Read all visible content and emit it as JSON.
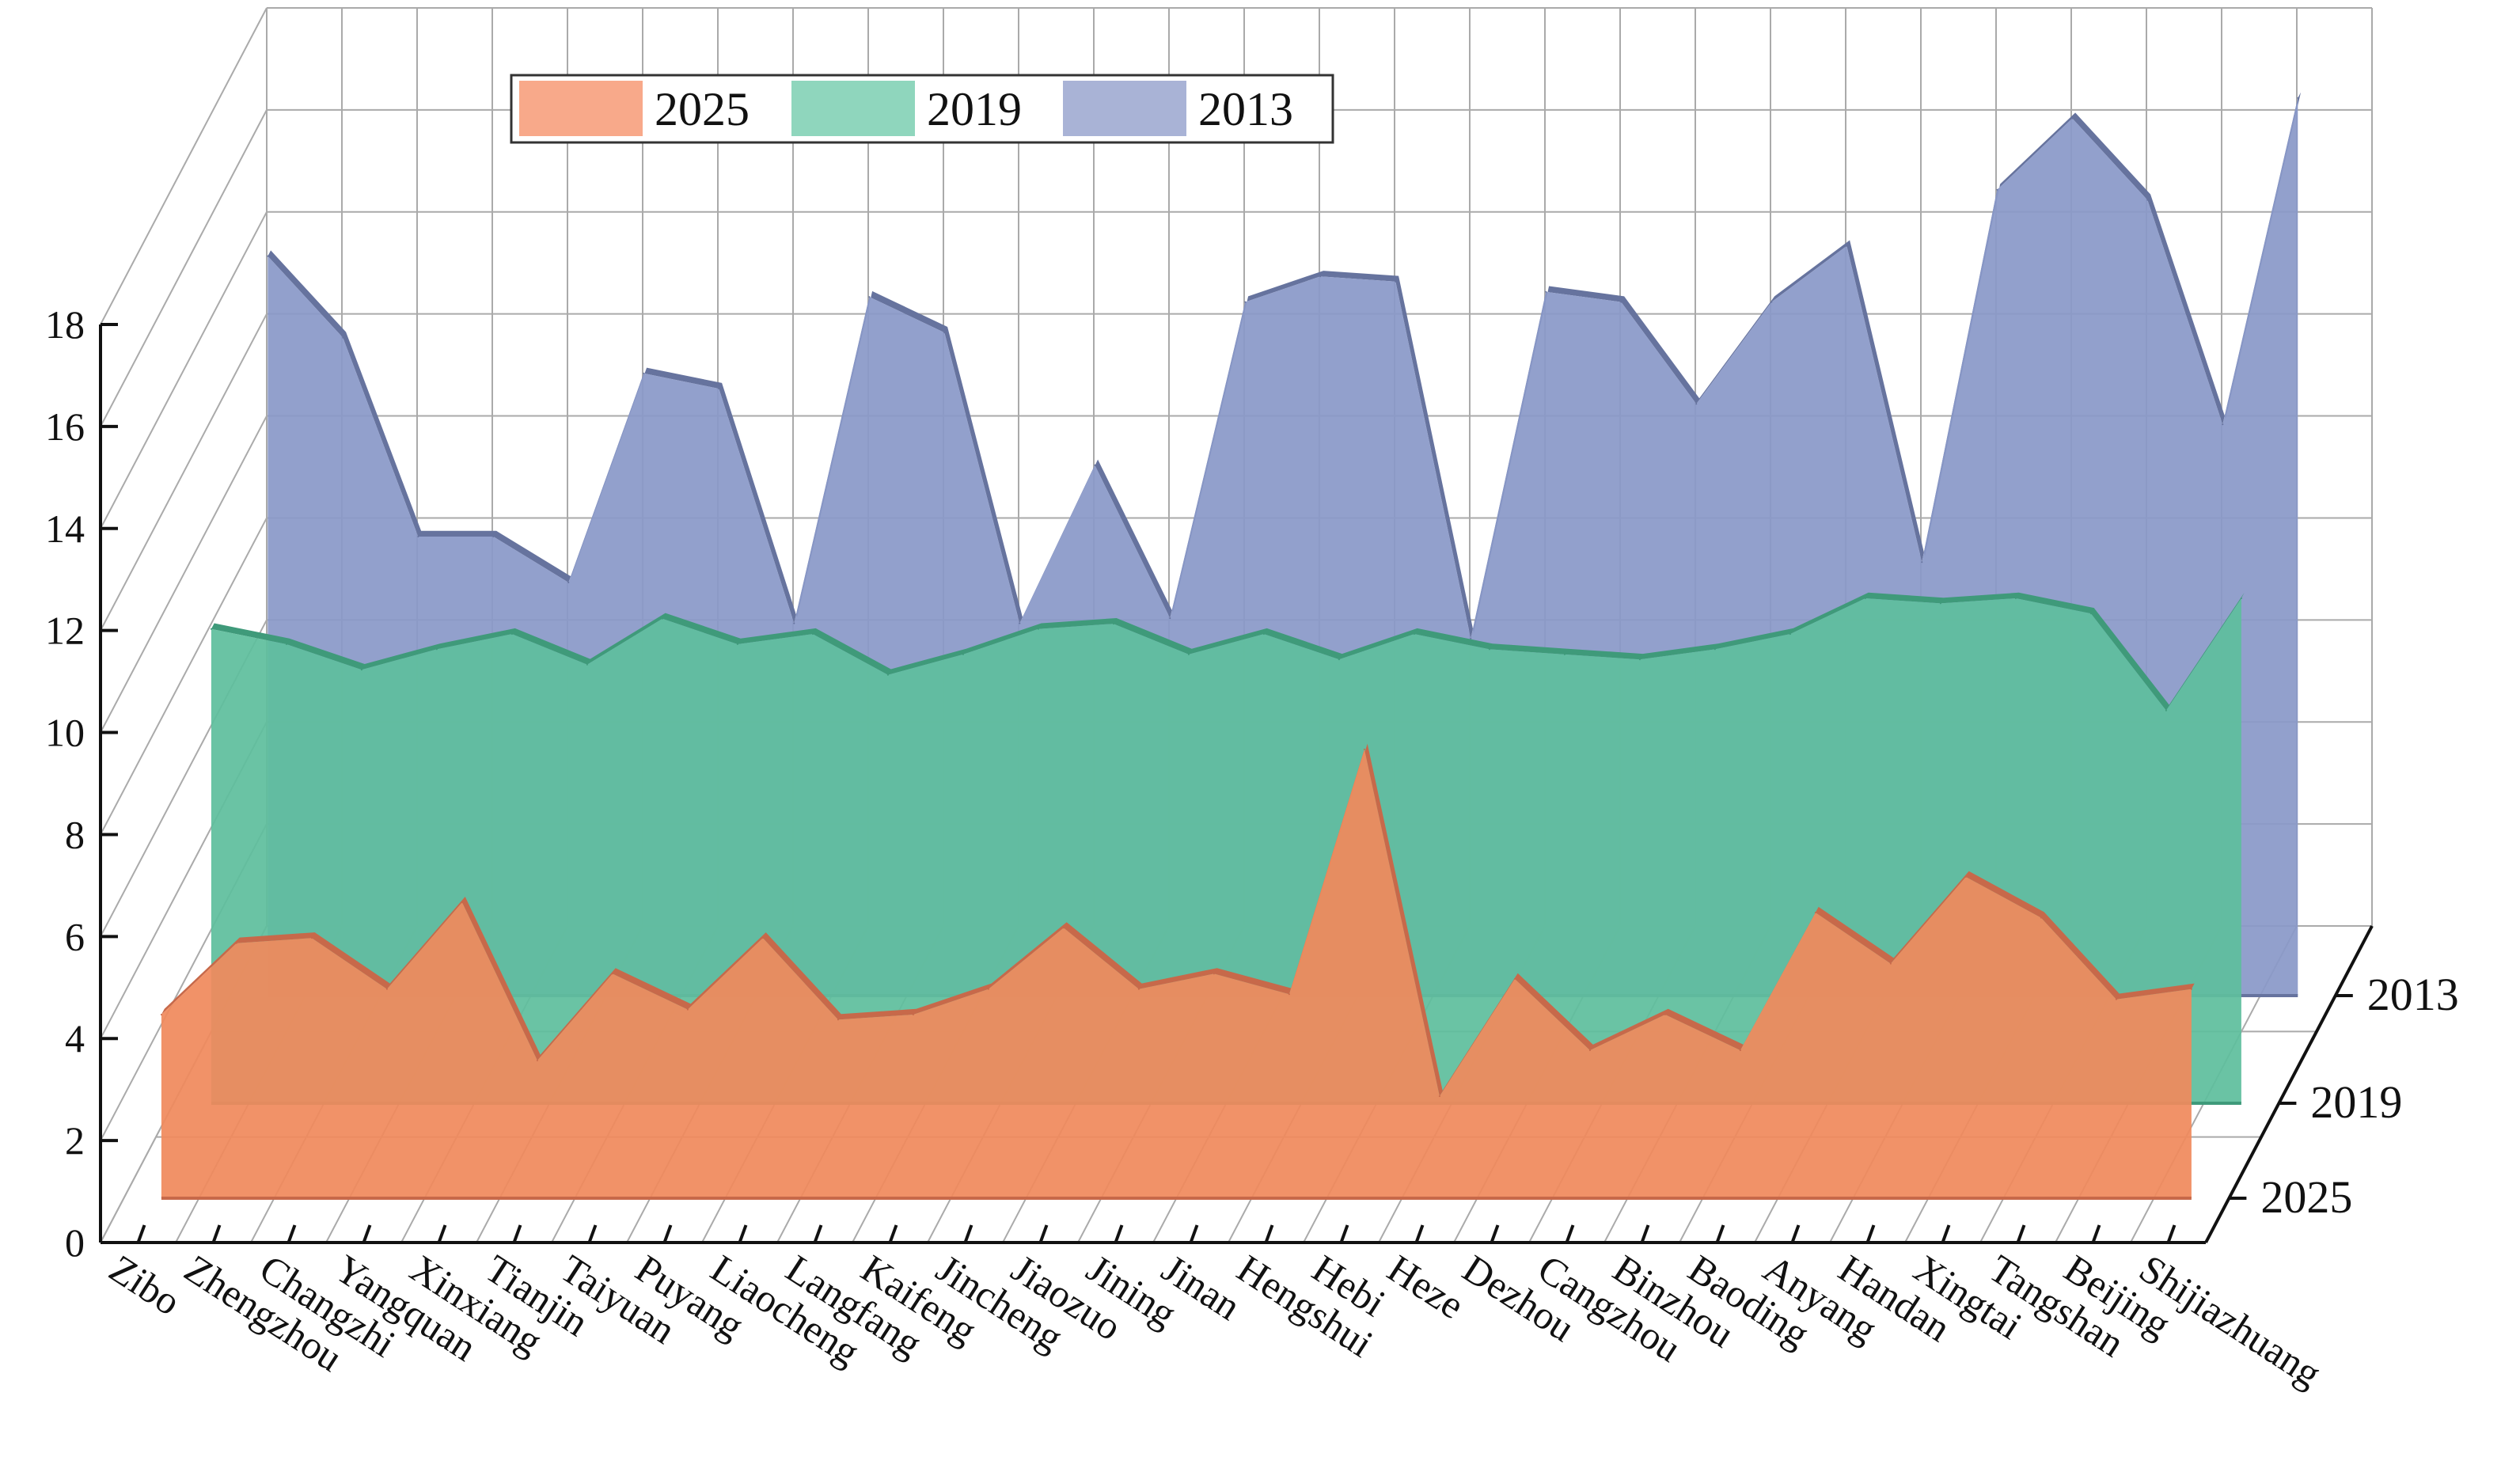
{
  "chart_data": {
    "type": "area",
    "style": "3d-ribbon",
    "categories": [
      "Zibo",
      "Zhengzhou",
      "Changzhi",
      "Yangquan",
      "Xinxiang",
      "Tianjin",
      "Taiyuan",
      "Puyang",
      "Liaocheng",
      "Langfang",
      "Kaifeng",
      "Jincheng",
      "Jiaozuo",
      "Jining",
      "Jinan",
      "Hengshui",
      "Hebi",
      "Heze",
      "Dezhou",
      "Cangzhou",
      "Binzhou",
      "Baoding",
      "Anyang",
      "Handan",
      "Xingtai",
      "Tangshan",
      "Beijing",
      "Shijiazhuang"
    ],
    "ylim": [
      0,
      18
    ],
    "yticks": [
      0,
      2,
      4,
      6,
      8,
      10,
      12,
      14,
      16,
      18
    ],
    "series": [
      {
        "name": "2025",
        "color": "#F08A5D",
        "legend_color": "#F8A98A",
        "edge_color": "#C7694A",
        "values": [
          3.6,
          5.0,
          5.1,
          4.1,
          5.8,
          2.7,
          4.4,
          3.7,
          5.1,
          3.5,
          3.6,
          4.1,
          5.3,
          4.1,
          4.4,
          4.0,
          8.8,
          2.0,
          4.3,
          2.9,
          3.6,
          2.9,
          5.6,
          4.6,
          6.3,
          5.5,
          3.9,
          4.1
        ]
      },
      {
        "name": "2019",
        "color": "#5FBE9D",
        "legend_color": "#8FD6BD",
        "edge_color": "#3F9A7A",
        "values": [
          9.3,
          9.0,
          8.5,
          8.9,
          9.2,
          8.6,
          9.5,
          9.0,
          9.2,
          8.4,
          8.8,
          9.3,
          9.4,
          8.8,
          9.2,
          8.7,
          9.2,
          8.9,
          8.8,
          8.7,
          8.9,
          9.2,
          9.9,
          9.8,
          9.9,
          9.6,
          7.7,
          9.9
        ]
      },
      {
        "name": "2013",
        "color": "#8A99C8",
        "legend_color": "#A9B3D6",
        "edge_color": "#66739E",
        "values": [
          14.5,
          12.9,
          9.0,
          9.0,
          8.1,
          12.2,
          11.9,
          7.3,
          13.7,
          13.0,
          7.3,
          10.4,
          7.4,
          13.6,
          14.1,
          14.0,
          7.0,
          13.8,
          13.6,
          11.6,
          13.6,
          14.7,
          8.5,
          15.8,
          17.2,
          15.6,
          11.2,
          17.6
        ]
      }
    ],
    "depth_labels": [
      "2025",
      "2019",
      "2013"
    ],
    "legend_location": "top-left",
    "grid": true
  }
}
